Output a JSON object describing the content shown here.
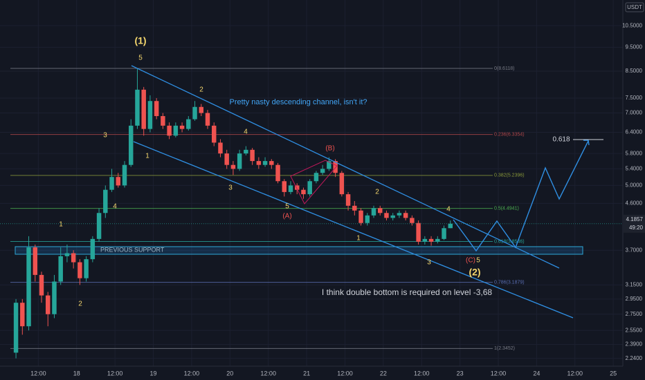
{
  "chart_data": {
    "type": "candlestick",
    "currency": "USDT",
    "log_scale": true,
    "grid": true,
    "up_color": "#26a69a",
    "down_color": "#ef5350",
    "xlim": [
      0,
      195
    ],
    "ylim": [
      2.16,
      11.83
    ],
    "xticks": [
      {
        "value": 12,
        "label": "12:00"
      },
      {
        "value": 24,
        "label": "18"
      },
      {
        "value": 36,
        "label": "12:00"
      },
      {
        "value": 48,
        "label": "19"
      },
      {
        "value": 60,
        "label": "12:00"
      },
      {
        "value": 72,
        "label": "20"
      },
      {
        "value": 84,
        "label": "12:00"
      },
      {
        "value": 96,
        "label": "21"
      },
      {
        "value": 108,
        "label": "12:00"
      },
      {
        "value": 120,
        "label": "22"
      },
      {
        "value": 132,
        "label": "12:00"
      },
      {
        "value": 144,
        "label": "23"
      },
      {
        "value": 156,
        "label": "12:00"
      },
      {
        "value": 168,
        "label": "24"
      },
      {
        "value": 180,
        "label": "12:00"
      },
      {
        "value": 192,
        "label": "25"
      }
    ],
    "yticks": [
      {
        "value": 10.5,
        "label": "10.5000"
      },
      {
        "value": 9.5,
        "label": "9.5000"
      },
      {
        "value": 8.5,
        "label": "8.5000"
      },
      {
        "value": 7.5,
        "label": "7.5000"
      },
      {
        "value": 7,
        "label": "7.0000"
      },
      {
        "value": 6.4,
        "label": "6.4000"
      },
      {
        "value": 5.8,
        "label": "5.8000"
      },
      {
        "value": 5.4,
        "label": "5.4000"
      },
      {
        "value": 5,
        "label": "5.0000"
      },
      {
        "value": 4.6,
        "label": "4.6000"
      },
      {
        "value": 3.7,
        "label": "3.7000"
      },
      {
        "value": 3.15,
        "label": "3.1500"
      },
      {
        "value": 2.95,
        "label": "2.9500"
      },
      {
        "value": 2.75,
        "label": "2.7500"
      },
      {
        "value": 2.55,
        "label": "2.5500"
      },
      {
        "value": 2.39,
        "label": "2.3900"
      },
      {
        "value": 2.24,
        "label": "2.2400"
      }
    ],
    "x": [
      5,
      7,
      9,
      11,
      13,
      15,
      17,
      19,
      21,
      23,
      25,
      27,
      29,
      31,
      33,
      35,
      37,
      39,
      41,
      43,
      45,
      47,
      49,
      51,
      53,
      55,
      57,
      59,
      61,
      63,
      65,
      67,
      69,
      71,
      73,
      75,
      77,
      79,
      81,
      83,
      85,
      87,
      89,
      91,
      93,
      95,
      97,
      99,
      101,
      103,
      105,
      107,
      109,
      111,
      113,
      115,
      117,
      119,
      121,
      123,
      125,
      127,
      129,
      131,
      133,
      135,
      137,
      139,
      141
    ],
    "open": [
      2.3,
      2.9,
      2.6,
      3.75,
      3.3,
      3.0,
      2.75,
      3.2,
      3.6,
      3.65,
      3.5,
      3.25,
      3.55,
      3.9,
      4.4,
      4.9,
      5.2,
      5.0,
      5.5,
      6.6,
      7.8,
      6.5,
      7.4,
      6.9,
      6.6,
      6.3,
      6.6,
      6.5,
      6.8,
      7.2,
      7.0,
      6.6,
      6.1,
      5.8,
      5.5,
      5.4,
      5.8,
      5.9,
      5.6,
      5.5,
      5.6,
      5.5,
      5.1,
      4.85,
      5.0,
      4.9,
      4.8,
      5.1,
      5.3,
      5.4,
      5.6,
      5.3,
      4.8,
      4.55,
      4.45,
      4.2,
      4.35,
      4.5,
      4.4,
      4.3,
      4.35,
      4.4,
      4.3,
      4.2,
      3.85,
      3.9,
      3.85,
      3.9,
      4.1
    ],
    "high": [
      2.95,
      2.95,
      3.95,
      3.8,
      3.35,
      3.05,
      3.3,
      3.75,
      3.8,
      3.7,
      3.55,
      3.6,
      3.95,
      4.5,
      5.0,
      5.4,
      5.3,
      5.6,
      6.8,
      8.6,
      7.9,
      7.6,
      7.5,
      7.0,
      6.7,
      6.7,
      6.7,
      6.9,
      7.4,
      7.3,
      7.1,
      6.7,
      6.2,
      5.9,
      5.6,
      5.9,
      6.0,
      5.95,
      5.7,
      5.7,
      5.65,
      5.55,
      5.15,
      5.1,
      5.05,
      4.95,
      5.15,
      5.35,
      5.5,
      5.7,
      5.65,
      5.35,
      4.85,
      4.65,
      4.5,
      4.4,
      4.55,
      4.55,
      4.45,
      4.4,
      4.45,
      4.45,
      4.35,
      4.25,
      3.95,
      3.95,
      3.95,
      4.15,
      4.25
    ],
    "low": [
      2.24,
      2.5,
      2.55,
      3.2,
      2.9,
      2.6,
      2.7,
      3.15,
      3.5,
      3.4,
      3.15,
      3.2,
      3.5,
      3.85,
      4.3,
      4.85,
      4.95,
      4.95,
      5.45,
      6.5,
      6.3,
      6.4,
      6.8,
      6.5,
      6.2,
      6.25,
      6.4,
      6.45,
      6.75,
      6.9,
      6.5,
      6.0,
      5.7,
      5.4,
      5.25,
      5.35,
      5.75,
      5.5,
      5.4,
      5.45,
      5.4,
      5.05,
      4.75,
      4.8,
      4.8,
      4.7,
      4.75,
      5.05,
      5.25,
      5.35,
      5.2,
      4.75,
      4.45,
      4.35,
      4.15,
      4.15,
      4.3,
      4.35,
      4.25,
      4.25,
      4.3,
      4.25,
      4.15,
      3.8,
      3.8,
      3.78,
      3.82,
      3.88,
      4.1
    ],
    "close": [
      2.9,
      2.6,
      3.75,
      3.3,
      3.0,
      2.75,
      3.2,
      3.6,
      3.65,
      3.5,
      3.25,
      3.55,
      3.9,
      4.4,
      4.9,
      5.2,
      5.0,
      5.5,
      6.6,
      7.8,
      6.5,
      7.4,
      6.9,
      6.6,
      6.3,
      6.6,
      6.5,
      6.8,
      7.2,
      7.0,
      6.6,
      6.1,
      5.8,
      5.5,
      5.4,
      5.8,
      5.9,
      5.6,
      5.5,
      5.6,
      5.5,
      5.1,
      4.85,
      5.0,
      4.9,
      4.8,
      5.1,
      5.3,
      5.4,
      5.6,
      5.3,
      4.8,
      4.55,
      4.45,
      4.2,
      4.35,
      4.5,
      4.4,
      4.3,
      4.35,
      4.4,
      4.3,
      4.2,
      3.85,
      3.9,
      3.85,
      3.9,
      4.1,
      4.1857
    ],
    "current_price": {
      "value": 4.1857,
      "label": "4.1857"
    },
    "countdown": "49:20",
    "fib_levels": [
      {
        "value": 8.6118,
        "label": "0(8.6118)",
        "color": "#787b86"
      },
      {
        "value": 6.3354,
        "label": "0.236(6.3354)",
        "color": "#b2474a"
      },
      {
        "value": 5.2396,
        "label": "0.382(5.2396)",
        "color": "#8a9a3a"
      },
      {
        "value": 4.4941,
        "label": "0.5(4.4941)",
        "color": "#4caf50"
      },
      {
        "value": 3.8546,
        "label": "0.618(3.8546)",
        "color": "#26a69a"
      },
      {
        "value": 3.1879,
        "label": "0.786(3.1879)",
        "color": "#5b6fb5"
      },
      {
        "value": 2.3452,
        "label": "1(2.3452)",
        "color": "#787b86"
      }
    ],
    "support_label": "PREVIOUS SUPPORT",
    "target_label": "0.618",
    "annotations": [
      "(1)",
      "5",
      "3",
      "1",
      "4",
      "1",
      "2",
      "2",
      "4",
      "3",
      "5",
      "(A)",
      "(B)",
      "2",
      "4",
      "1",
      "3",
      "(C)",
      "5",
      "(2)",
      "Pretty nasty descending channel, isn't it?",
      "I think double bottom is required on level -3,68"
    ]
  }
}
